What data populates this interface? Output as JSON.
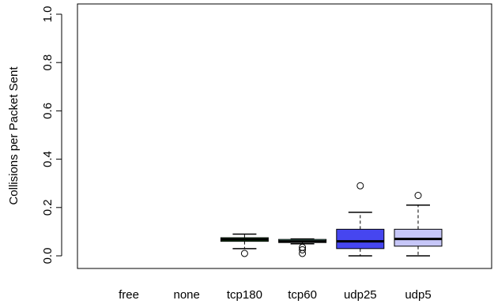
{
  "chart_data": {
    "type": "boxplot",
    "title": "",
    "xlabel": "",
    "ylabel": "Collisions per Packet Sent",
    "ylim": [
      0,
      1.0
    ],
    "yticks": [
      "0.0",
      "0.2",
      "0.4",
      "0.6",
      "0.8",
      "1.0"
    ],
    "grid": false,
    "categories": [
      "free",
      "none",
      "tcp180",
      "tcp60",
      "udp25",
      "udp5"
    ],
    "boxes": [
      {
        "category": "free",
        "empty": true
      },
      {
        "category": "none",
        "empty": true
      },
      {
        "category": "tcp180",
        "color": "#1f8a2a",
        "min": 0.03,
        "q1": 0.06,
        "median": 0.068,
        "q3": 0.075,
        "max": 0.09,
        "outliers": [
          0.01
        ]
      },
      {
        "category": "tcp60",
        "color": "#7ed0b8",
        "min": 0.05,
        "q1": 0.055,
        "median": 0.06,
        "q3": 0.068,
        "max": 0.07,
        "outliers": [
          0.035,
          0.025,
          0.01
        ]
      },
      {
        "category": "udp25",
        "color": "#4646f0",
        "min": 0.0,
        "q1": 0.03,
        "median": 0.06,
        "q3": 0.11,
        "max": 0.18,
        "outliers": [
          0.29
        ]
      },
      {
        "category": "udp5",
        "color": "#c6c6f8",
        "min": 0.0,
        "q1": 0.04,
        "median": 0.07,
        "q3": 0.11,
        "max": 0.21,
        "outliers": [
          0.25
        ]
      }
    ]
  }
}
